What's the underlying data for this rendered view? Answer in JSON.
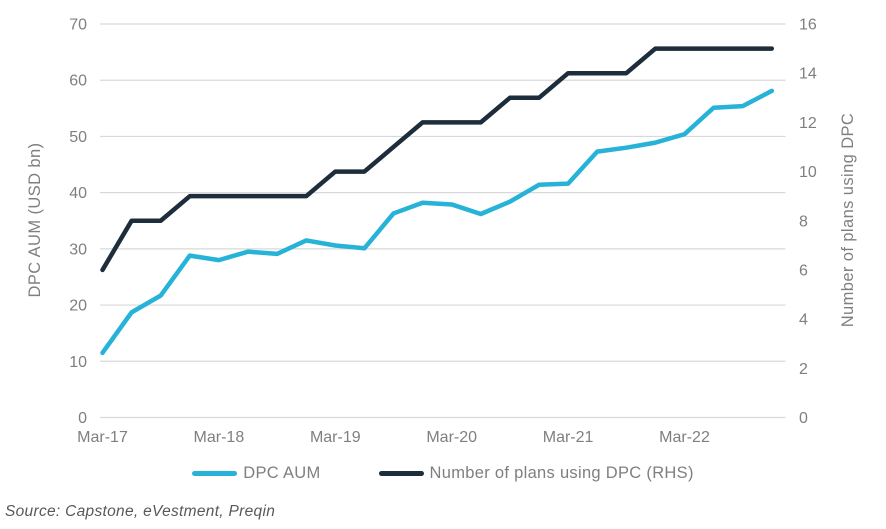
{
  "chart_data": {
    "type": "line",
    "categories": [
      "Mar-17",
      "Jun-17",
      "Sep-17",
      "Dec-17",
      "Mar-18",
      "Jun-18",
      "Sep-18",
      "Dec-18",
      "Mar-19",
      "Jun-19",
      "Sep-19",
      "Dec-19",
      "Mar-20",
      "Jun-20",
      "Sep-20",
      "Dec-20",
      "Mar-21",
      "Jun-21",
      "Sep-21",
      "Dec-21",
      "Mar-22",
      "Jun-22",
      "Sep-22",
      "Dec-22"
    ],
    "x_tick_labels": [
      "Mar-17",
      "Mar-18",
      "Mar-19",
      "Mar-20",
      "Mar-21",
      "Mar-22"
    ],
    "x_tick_every": 4,
    "series": [
      {
        "name": "DPC AUM",
        "axis": "left",
        "color": "#27b2d8",
        "values": [
          11.5,
          18.7,
          21.7,
          28.8,
          28.0,
          29.5,
          29.1,
          31.5,
          30.6,
          30.1,
          36.3,
          38.2,
          37.9,
          36.2,
          38.4,
          41.4,
          41.6,
          47.3,
          48.0,
          48.9,
          50.4,
          55.1,
          55.4,
          58.1
        ]
      },
      {
        "name": "Number of plans using DPC (RHS)",
        "axis": "right",
        "color": "#1d2d3b",
        "values": [
          6,
          8,
          8,
          9,
          9,
          9,
          9,
          9,
          10,
          10,
          11,
          12,
          12,
          12,
          13,
          13,
          14,
          14,
          14,
          15,
          15,
          15,
          15,
          15
        ]
      }
    ],
    "left_axis": {
      "label": "DPC AUM (USD bn)",
      "min": 0,
      "max": 70,
      "step": 10,
      "tick_labels": [
        "0",
        "10",
        "20",
        "30",
        "40",
        "50",
        "60",
        "70"
      ]
    },
    "right_axis": {
      "label": "Number of plans using DPC",
      "min": 0,
      "max": 16,
      "step": 2,
      "tick_labels": [
        "0",
        "2",
        "4",
        "6",
        "8",
        "10",
        "12",
        "14",
        "16"
      ]
    },
    "grid": true,
    "legend_position": "bottom"
  },
  "style": {
    "gridline_color": "#d9d9d9",
    "tick_text_color": "#7f7f7f",
    "line_width": 4.5
  },
  "source_note": "Source: Capstone, eVestment, Preqin"
}
